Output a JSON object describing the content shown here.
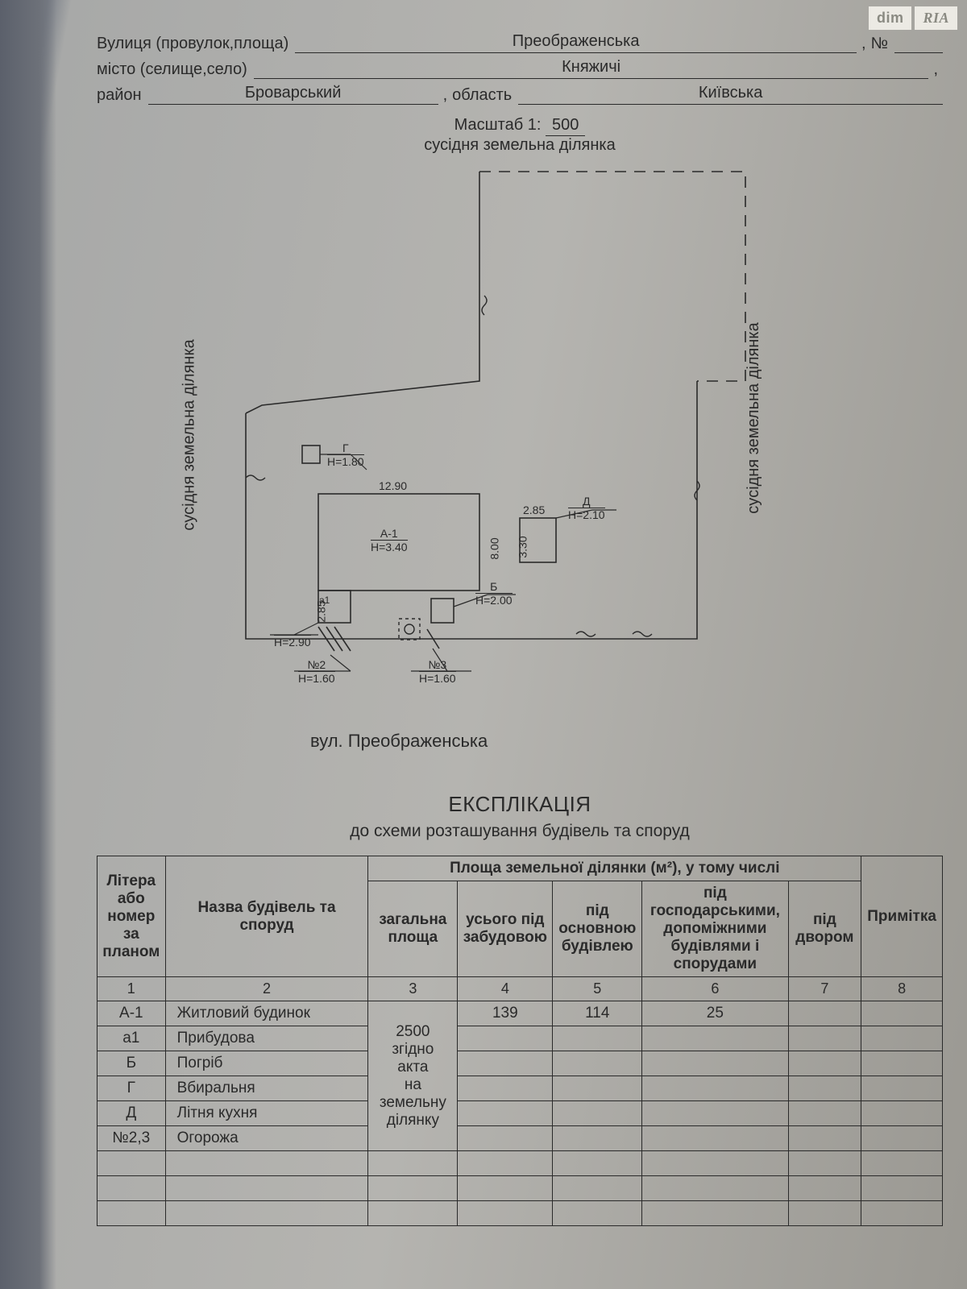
{
  "watermark": {
    "left": "dim",
    "right": "RIA"
  },
  "header": {
    "street_label": "Вулиця (провулок,площа)",
    "street_value": "Преображенська",
    "num_label": "№",
    "num_value": "",
    "city_label": "місто (селище,село)",
    "city_value": "Княжичі",
    "district_label": "район",
    "district_value": "Броварський",
    "region_label": "область",
    "region_value": "Київська",
    "scale_label": "Масштаб 1:",
    "scale_value": "500"
  },
  "plan": {
    "neighbor_label": "сусідня земельна ділянка",
    "street_name": "вул. Преображенська",
    "buildings": {
      "A1": {
        "letter": "А-1",
        "h": "Н=3.40",
        "w": "12.90",
        "d": "8.00"
      },
      "a1": {
        "letter": "а1",
        "h": "Н=2.90",
        "w": "2.85"
      },
      "B": {
        "letter": "Б",
        "h": "Н=2.00"
      },
      "G": {
        "letter": "Г",
        "h": "Н=1.80"
      },
      "D": {
        "letter": "Д",
        "h": "Н=2.10",
        "w": "2.85",
        "d": "3.30"
      },
      "N2": {
        "letter": "№2",
        "h": "Н=1.60"
      },
      "N3": {
        "letter": "№3",
        "h": "Н=1.60"
      }
    },
    "boundary_color": "#2a2a2a",
    "building_stroke": "#2a2a2a",
    "font_size_dim": 14
  },
  "explication": {
    "title": "ЕКСПЛІКАЦІЯ",
    "subtitle": "до схеми розташування будівель та споруд",
    "columns": {
      "c1": "Літера або номер за планом",
      "c2": "Назва будівель та споруд",
      "group": "Площа земельної ділянки (м²), у тому числі",
      "c3": "загальна площа",
      "c4": "усього під забудовою",
      "c5": "під основною будівлею",
      "c6": "під господарськими, допоміжними будівлями і спорудами",
      "c7": "під двором",
      "c8": "Примітка"
    },
    "colnums": [
      "1",
      "2",
      "3",
      "4",
      "5",
      "6",
      "7",
      "8"
    ],
    "total_note": [
      "2500",
      "згідно",
      "акта",
      "на",
      "земельну",
      "ділянку"
    ],
    "rows": [
      {
        "letter": "А-1",
        "name": "Житловий будинок",
        "v4": "139",
        "v5": "114",
        "v6": "25",
        "v7": "",
        "v8": ""
      },
      {
        "letter": "а1",
        "name": "Прибудова",
        "v4": "",
        "v5": "",
        "v6": "",
        "v7": "",
        "v8": ""
      },
      {
        "letter": "Б",
        "name": "Погріб",
        "v4": "",
        "v5": "",
        "v6": "",
        "v7": "",
        "v8": ""
      },
      {
        "letter": "Г",
        "name": "Вбиральня",
        "v4": "",
        "v5": "",
        "v6": "",
        "v7": "",
        "v8": ""
      },
      {
        "letter": "Д",
        "name": "Літня кухня",
        "v4": "",
        "v5": "",
        "v6": "",
        "v7": "",
        "v8": ""
      },
      {
        "letter": "№2,3",
        "name": "Огорожа",
        "v4": "",
        "v5": "",
        "v6": "",
        "v7": "",
        "v8": ""
      }
    ],
    "blank_rows": 3
  }
}
